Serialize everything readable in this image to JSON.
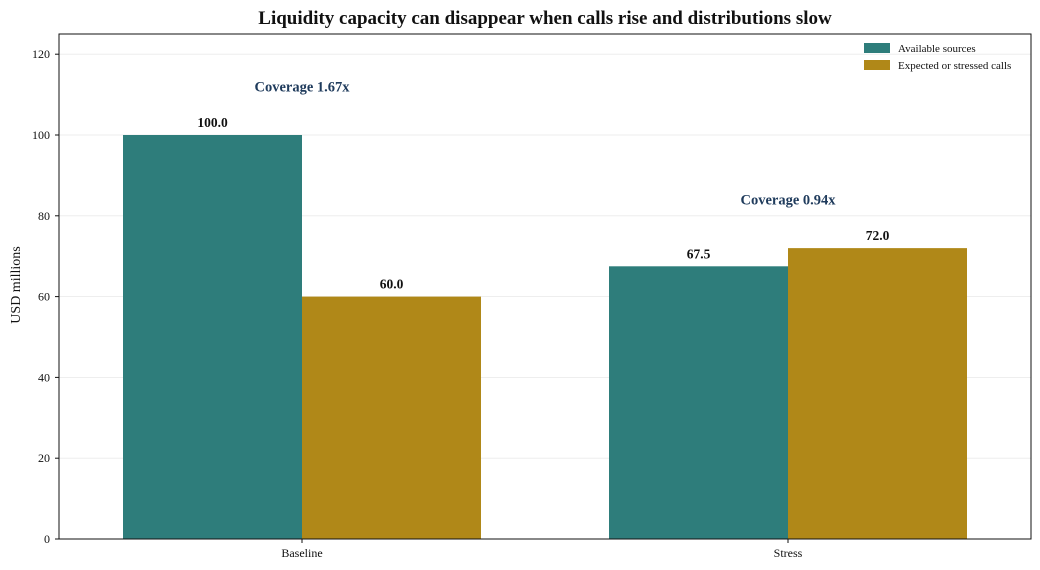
{
  "chart_data": {
    "type": "bar",
    "title": "Liquidity capacity can disappear when calls rise and distributions slow",
    "xlabel": "",
    "ylabel": "USD millions",
    "categories": [
      "Baseline",
      "Stress"
    ],
    "series": [
      {
        "name": "Available sources",
        "values": [
          100.0,
          67.5
        ],
        "color": "#2e7d7b"
      },
      {
        "name": "Expected or stressed calls",
        "values": [
          60.0,
          72.0
        ],
        "color": "#b08818"
      }
    ],
    "data_labels": [
      [
        "100.0",
        "67.5"
      ],
      [
        "60.0",
        "72.0"
      ]
    ],
    "annotations": [
      {
        "text": "Coverage 1.67x",
        "category": "Baseline",
        "y": 112
      },
      {
        "text": "Coverage 0.94x",
        "category": "Stress",
        "y": 84
      }
    ],
    "annotation_color": "#1f3b5c",
    "ylim": [
      0,
      125
    ],
    "yticks": [
      0,
      20,
      40,
      60,
      80,
      100,
      120
    ],
    "grid": true,
    "legend_position": "top-right"
  }
}
